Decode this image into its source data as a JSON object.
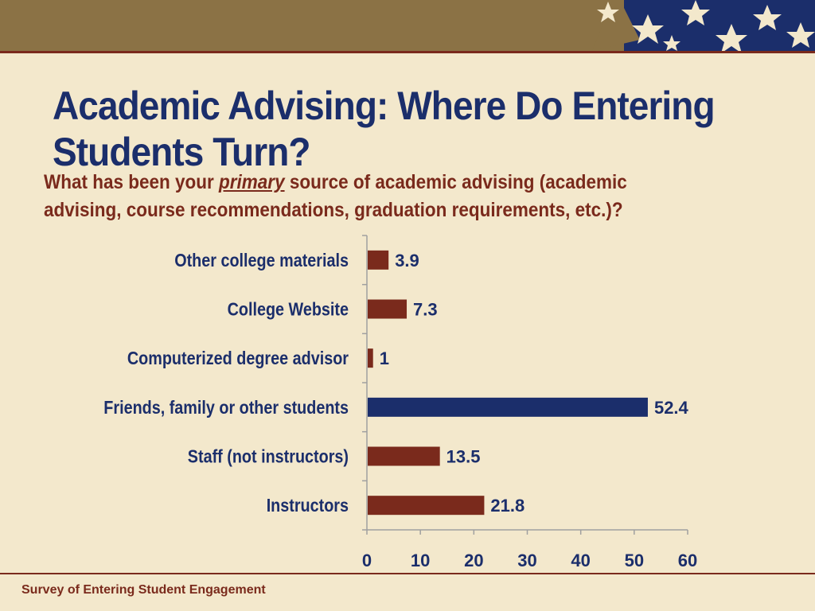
{
  "slide": {
    "title": "Academic Advising: Where Do Entering Students Turn?",
    "question_before": "What has been your ",
    "question_emphasis": "primary",
    "question_after": " source of academic advising (academic advising, course recommendations, graduation requirements, etc.)?",
    "footer": "Survey of Entering Student Engagement"
  },
  "colors": {
    "background": "#f3e8cc",
    "band": "#8b7245",
    "accent_red": "#7a2a1c",
    "navy": "#1b2e6b"
  },
  "chart_data": {
    "type": "bar",
    "orientation": "horizontal",
    "categories": [
      "Other college materials",
      "College Website",
      "Computerized degree advisor",
      "Friends, family or other students",
      "Staff (not instructors)",
      "Instructors"
    ],
    "values": [
      3.9,
      7.3,
      1,
      52.4,
      13.5,
      21.8
    ],
    "value_labels": [
      "3.9",
      "7.3",
      "1",
      "52.4",
      "13.5",
      "21.8"
    ],
    "highlight_index": 3,
    "bar_color": "#7a2a1c",
    "highlight_color": "#1b2e6b",
    "xlim": [
      0,
      60
    ],
    "xticks": [
      0,
      10,
      20,
      30,
      40,
      50,
      60
    ],
    "grid": false,
    "legend": "none"
  }
}
